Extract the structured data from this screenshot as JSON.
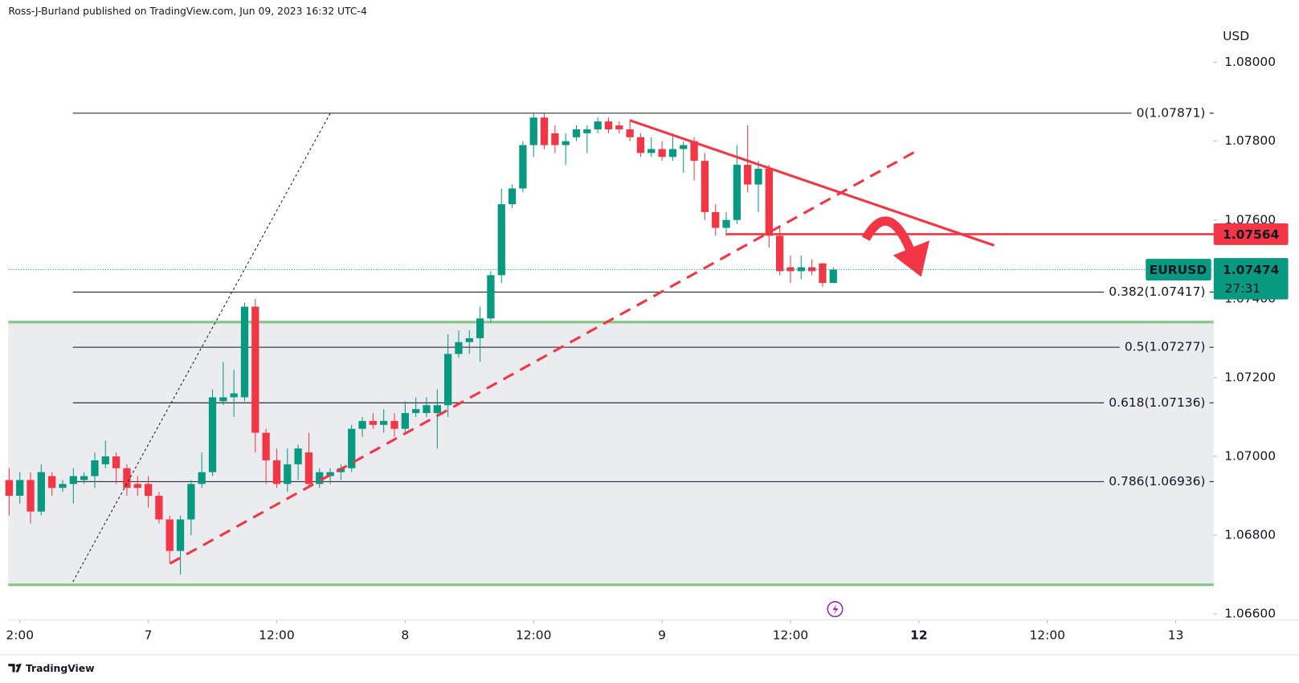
{
  "chart_data": {
    "type": "candlestick",
    "title": "Ross-J-Burland published on TradingView.com, Jun 09, 2023 16:32 UTC-4",
    "y_axis_label": "USD",
    "brand": "TradingView",
    "up_color": "#089981",
    "down_color": "#f23645",
    "x": [
      -13,
      -12,
      -11,
      -10,
      -9,
      -8,
      -7,
      -6,
      -5,
      -4,
      -3,
      -2,
      -1,
      0,
      1,
      2,
      3,
      4,
      5,
      6,
      7,
      8,
      9,
      10,
      11,
      12,
      13,
      14,
      15,
      16,
      17,
      18,
      19,
      20,
      21,
      22,
      23,
      24,
      25,
      26,
      27,
      28,
      29,
      30,
      31,
      32,
      33,
      34,
      35,
      36,
      37,
      38,
      39,
      40,
      41,
      42,
      43,
      44,
      45,
      46,
      47,
      48,
      49,
      50,
      51,
      52,
      53,
      54,
      55,
      56,
      57,
      58,
      59,
      60,
      61,
      62,
      63,
      64
    ],
    "open": [
      1.0694,
      1.069,
      1.0694,
      1.0686,
      1.0695,
      1.0692,
      1.0693,
      1.0694,
      1.0695,
      1.0698,
      1.07,
      1.0697,
      1.0693,
      1.0693,
      1.069,
      1.0684,
      1.0676,
      1.0684,
      1.0693,
      1.0696,
      1.0714,
      1.0715,
      1.0715,
      1.0738,
      1.0706,
      1.0699,
      1.0693,
      1.0698,
      1.0701,
      1.0693,
      1.0695,
      1.0696,
      1.0697,
      1.0707,
      1.0709,
      1.0708,
      1.0709,
      1.0707,
      1.0711,
      1.0711,
      1.0711,
      1.0713,
      1.0726,
      1.0729,
      1.073,
      1.0735,
      1.0746,
      1.0764,
      1.0768,
      1.0779,
      1.0786,
      1.0782,
      1.0779,
      1.0781,
      1.0782,
      1.0783,
      1.0785,
      1.0784,
      1.0783,
      1.0781,
      1.0777,
      1.0778,
      1.0776,
      1.0778,
      1.078,
      1.0775,
      1.0762,
      1.0758,
      1.076,
      1.0774,
      1.0769,
      1.0773,
      1.0756,
      1.0748,
      1.0747,
      1.0748,
      1.0749,
      1.0744
    ],
    "high": [
      1.0697,
      1.0696,
      1.0696,
      1.0698,
      1.0696,
      1.0694,
      1.0697,
      1.0696,
      1.0701,
      1.0704,
      1.0701,
      1.0698,
      1.0695,
      1.0695,
      1.0691,
      1.0685,
      1.0685,
      1.0694,
      1.0701,
      1.0717,
      1.0724,
      1.0722,
      1.0739,
      1.074,
      1.0707,
      1.0702,
      1.0702,
      1.0703,
      1.0706,
      1.0697,
      1.0697,
      1.0698,
      1.0708,
      1.071,
      1.0711,
      1.0712,
      1.0711,
      1.0714,
      1.0715,
      1.0715,
      1.0717,
      1.0731,
      1.0732,
      1.0732,
      1.0738,
      1.0747,
      1.0768,
      1.0769,
      1.078,
      1.0787,
      1.0787,
      1.0784,
      1.0782,
      1.0784,
      1.0784,
      1.0786,
      1.0786,
      1.0785,
      1.0785,
      1.0782,
      1.0781,
      1.078,
      1.0782,
      1.078,
      1.0781,
      1.0777,
      1.0764,
      1.0762,
      1.0779,
      1.0784,
      1.0775,
      1.0774,
      1.0758,
      1.0751,
      1.0751,
      1.075,
      1.0749,
      1.0748
    ],
    "low": [
      1.0685,
      1.0688,
      1.0683,
      1.0685,
      1.069,
      1.0691,
      1.0688,
      1.0693,
      1.0692,
      1.0697,
      1.0693,
      1.069,
      1.069,
      1.0687,
      1.0683,
      1.0673,
      1.067,
      1.068,
      1.0692,
      1.0695,
      1.0713,
      1.071,
      1.0714,
      1.0701,
      1.0693,
      1.0692,
      1.0691,
      1.0694,
      1.0692,
      1.0692,
      1.0693,
      1.0694,
      1.0696,
      1.0705,
      1.0707,
      1.0706,
      1.0705,
      1.0706,
      1.071,
      1.071,
      1.0702,
      1.071,
      1.0725,
      1.0726,
      1.0724,
      1.0734,
      1.0744,
      1.0763,
      1.0767,
      1.0776,
      1.0778,
      1.0777,
      1.0774,
      1.078,
      1.0777,
      1.0782,
      1.0782,
      1.0782,
      1.078,
      1.0776,
      1.0776,
      1.0775,
      1.0775,
      1.0772,
      1.077,
      1.076,
      1.0756,
      1.0756,
      1.0759,
      1.0767,
      1.0762,
      1.0753,
      1.0746,
      1.0744,
      1.0745,
      1.0746,
      1.0743,
      1.0744
    ],
    "close": [
      1.069,
      1.0694,
      1.0686,
      1.0696,
      1.0692,
      1.0693,
      1.0695,
      1.0695,
      1.0699,
      1.07,
      1.0697,
      1.0692,
      1.0692,
      1.069,
      1.0684,
      1.0676,
      1.0684,
      1.0693,
      1.0696,
      1.0715,
      1.0715,
      1.0716,
      1.0738,
      1.0706,
      1.0699,
      1.0693,
      1.0698,
      1.0702,
      1.0693,
      1.0696,
      1.0696,
      1.0697,
      1.0707,
      1.0709,
      1.0708,
      1.0709,
      1.0707,
      1.0711,
      1.0712,
      1.0713,
      1.0713,
      1.0726,
      1.0729,
      1.073,
      1.0735,
      1.0746,
      1.0764,
      1.0768,
      1.0779,
      1.0786,
      1.0779,
      1.0779,
      1.078,
      1.0783,
      1.0783,
      1.0785,
      1.0783,
      1.0783,
      1.0781,
      1.0777,
      1.0778,
      1.0776,
      1.0778,
      1.0779,
      1.0775,
      1.0762,
      1.0758,
      1.076,
      1.0774,
      1.0769,
      1.0773,
      1.0756,
      1.0747,
      1.0747,
      1.0748,
      1.0747,
      1.0744,
      1.07474
    ],
    "xlim": [
      -13.08,
      99.54
    ],
    "xticks": [
      {
        "value": -12,
        "label": "2:00"
      },
      {
        "value": 0,
        "label": "7"
      },
      {
        "value": 12,
        "label": "12:00"
      },
      {
        "value": 24,
        "label": "8"
      },
      {
        "value": 36,
        "label": "12:00"
      },
      {
        "value": 48,
        "label": "9"
      },
      {
        "value": 60,
        "label": "12:00"
      },
      {
        "value": 72,
        "label": "12",
        "bold": true
      },
      {
        "value": 84,
        "label": "12:00"
      },
      {
        "value": 96,
        "label": "13"
      }
    ],
    "ylim": [
      1.06585,
      1.08158
    ],
    "yticks": [
      {
        "value": 1.066,
        "label": "1.06600"
      },
      {
        "value": 1.068,
        "label": "1.06800"
      },
      {
        "value": 1.07,
        "label": "1.07000"
      },
      {
        "value": 1.072,
        "label": "1.07200"
      },
      {
        "value": 1.074,
        "label": "1.07400"
      },
      {
        "value": 1.076,
        "label": "1.07600"
      },
      {
        "value": 1.078,
        "label": "1.07800"
      },
      {
        "value": 1.08,
        "label": "1.08000"
      }
    ],
    "zone": {
      "top": 1.07341,
      "bottom": 1.06674,
      "color": "#81c784"
    },
    "fib_levels": [
      {
        "value": 1.07871,
        "label": "0(1.07871)"
      },
      {
        "value": 1.07417,
        "label": "0.382(1.07417)"
      },
      {
        "value": 1.07277,
        "label": "0.5(1.07277)"
      },
      {
        "value": 1.07136,
        "label": "0.618(1.07136)"
      },
      {
        "value": 1.06936,
        "label": "0.786(1.06936)"
      }
    ],
    "resistance": {
      "value": 1.07564,
      "color": "#f23645"
    },
    "last_price": {
      "symbol": "EURUSD",
      "value": 1.07474,
      "countdown": "27:31",
      "color": "#089981"
    }
  }
}
